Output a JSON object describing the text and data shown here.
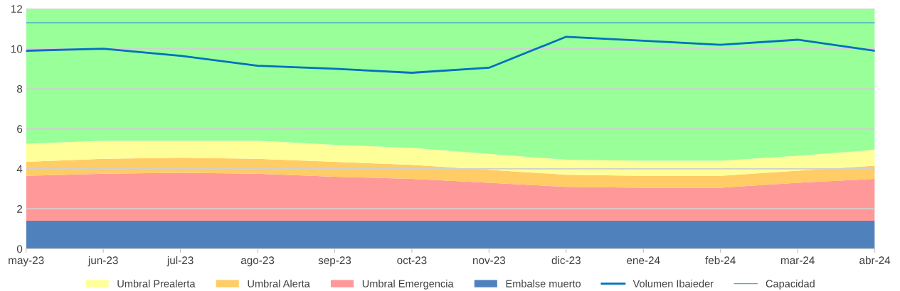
{
  "chart_data": {
    "type": "area",
    "stacked": true,
    "categories": [
      "may-23",
      "jun-23",
      "jul-23",
      "ago-23",
      "sep-23",
      "oct-23",
      "nov-23",
      "dic-23",
      "ene-24",
      "feb-24",
      "mar-24",
      "abr-24"
    ],
    "series": [
      {
        "name": "Embalse muerto",
        "color": "#4f81bd",
        "values": [
          1.4,
          1.4,
          1.4,
          1.4,
          1.4,
          1.4,
          1.4,
          1.4,
          1.4,
          1.4,
          1.4,
          1.4
        ]
      },
      {
        "name": "Umbral Emergencia",
        "color": "#ff9999",
        "values": [
          2.25,
          2.35,
          2.4,
          2.35,
          2.2,
          2.1,
          1.9,
          1.7,
          1.65,
          1.65,
          1.9,
          2.1
        ]
      },
      {
        "name": "Umbral Alerta",
        "color": "#ffcc66",
        "values": [
          0.7,
          0.75,
          0.75,
          0.75,
          0.75,
          0.7,
          0.65,
          0.6,
          0.6,
          0.6,
          0.6,
          0.65
        ]
      },
      {
        "name": "Umbral Prealerta",
        "color": "#ffff99",
        "values": [
          0.9,
          0.9,
          0.85,
          0.9,
          0.85,
          0.85,
          0.8,
          0.75,
          0.75,
          0.75,
          0.75,
          0.8
        ]
      },
      {
        "color": "#99ff99",
        "values": [
          6.75,
          6.6,
          6.6,
          6.6,
          6.8,
          6.95,
          7.25,
          7.55,
          7.6,
          7.6,
          7.35,
          7.05
        ]
      },
      {
        "type": "line",
        "name": "Volumen Ibaieder",
        "color": "#0070c0",
        "values": [
          9.9,
          10.0,
          9.65,
          9.15,
          9.0,
          8.8,
          9.05,
          10.6,
          10.4,
          10.2,
          10.45,
          9.9
        ]
      },
      {
        "type": "line",
        "name": "Capacidad",
        "color": "#4bacc6",
        "values": [
          11.3,
          11.3,
          11.3,
          11.3,
          11.3,
          11.3,
          11.3,
          11.3,
          11.3,
          11.3,
          11.3,
          11.3
        ]
      }
    ],
    "ylim": [
      0,
      12
    ],
    "yticks": [
      0,
      2,
      4,
      6,
      8,
      10,
      12
    ],
    "grid": "y",
    "legend": "bottom",
    "marker": "none",
    "line_style": "solid"
  }
}
